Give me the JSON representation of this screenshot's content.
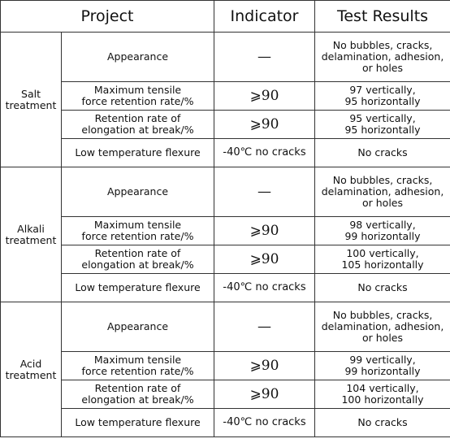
{
  "header": [
    "Project",
    "Indicator",
    "Test Results"
  ],
  "groups": [
    {
      "name": "Salt\ntreatment",
      "rows": [
        {
          "item": "Appearance",
          "indicator": "—",
          "result": "No bubbles, cracks,\ndelamination, adhesion,\nor holes"
        },
        {
          "item": "Maximum tensile\nforce retention rate/%",
          "indicator": "⩾90",
          "result": "97 vertically,\n95 horizontally"
        },
        {
          "item": "Retention rate of\nelongation at break/%",
          "indicator": "⩾90",
          "result": "95 vertically,\n95 horizontally"
        },
        {
          "item": "Low temperature flexure",
          "indicator": "-40℃ no cracks",
          "result": "No cracks"
        }
      ]
    },
    {
      "name": "Alkali\ntreatment",
      "rows": [
        {
          "item": "Appearance",
          "indicator": "—",
          "result": "No bubbles, cracks,\ndelamination, adhesion,\nor holes"
        },
        {
          "item": "Maximum tensile\nforce retention rate/%",
          "indicator": "⩾90",
          "result": "98 vertically,\n99 horizontally"
        },
        {
          "item": "Retention rate of\nelongation at break/%",
          "indicator": "⩾90",
          "result": "100 vertically,\n105 horizontally"
        },
        {
          "item": "Low temperature flexure",
          "indicator": "-40℃ no cracks",
          "result": "No cracks"
        }
      ]
    },
    {
      "name": "Acid\ntreatment",
      "rows": [
        {
          "item": "Appearance",
          "indicator": "—",
          "result": "No bubbles, cracks,\ndelamination, adhesion,\nor holes"
        },
        {
          "item": "Maximum tensile\nforce retention rate/%",
          "indicator": "⩾90",
          "result": "99 vertically,\n99 horizontally"
        },
        {
          "item": "Retention rate of\nelongation at break/%",
          "indicator": "⩾90",
          "result": "104 vertically,\n100 horizontally"
        },
        {
          "item": "Low temperature flexure",
          "indicator": "-40℃ no cracks",
          "result": "No cracks"
        }
      ]
    }
  ]
}
